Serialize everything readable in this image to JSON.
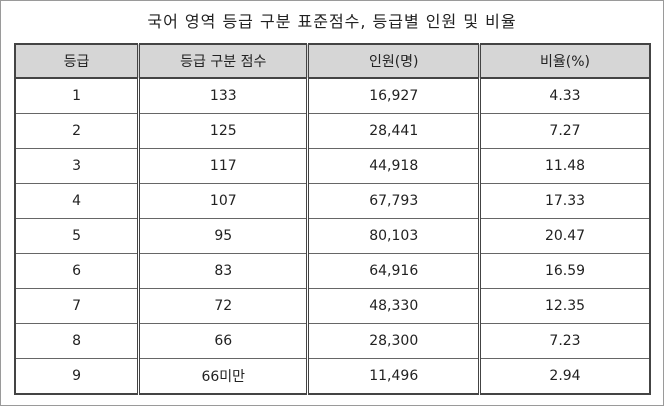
{
  "title": "국어 영역 등급 구분 표준점수, 등급별 인원 및 비율",
  "table": {
    "header": [
      "등급",
      "등급 구분 점수",
      "인원(명)",
      "비율(%)"
    ],
    "rows": [
      [
        "1",
        "133",
        "16,927",
        "4.33"
      ],
      [
        "2",
        "125",
        "28,441",
        "7.27"
      ],
      [
        "3",
        "117",
        "44,918",
        "11.48"
      ],
      [
        "4",
        "107",
        "67,793",
        "17.33"
      ],
      [
        "5",
        "95",
        "80,103",
        "20.47"
      ],
      [
        "6",
        "83",
        "64,916",
        "16.59"
      ],
      [
        "7",
        "72",
        "48,330",
        "12.35"
      ],
      [
        "8",
        "66",
        "28,300",
        "7.23"
      ],
      [
        "9",
        "66미만",
        "11,496",
        "2.94"
      ]
    ]
  }
}
